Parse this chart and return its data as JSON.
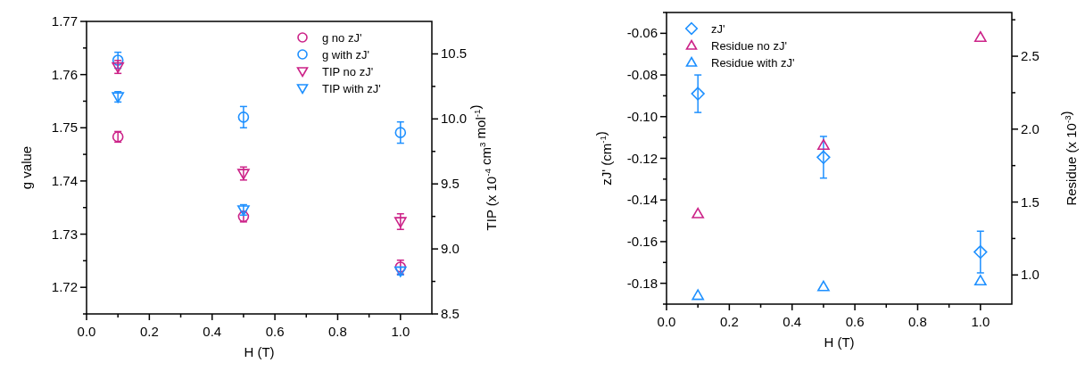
{
  "chart_data": [
    {
      "type": "scatter",
      "xlabel": "H (T)",
      "ylabel": "g value",
      "y2label": "TIP (x 10$^{-4}$ cm$^{3}$ mol$^{-1}$)",
      "legend": "top right",
      "x": [
        0.1,
        0.5,
        1.0
      ],
      "xlim": [
        0,
        1.1
      ],
      "xticks": [
        {
          "value": 0,
          "label": "0.0"
        },
        {
          "value": 0.1,
          "label": null
        },
        {
          "value": 0.2,
          "label": "0.2"
        },
        {
          "value": 0.3,
          "label": null
        },
        {
          "value": 0.4,
          "label": "0.4"
        },
        {
          "value": 0.5,
          "label": null
        },
        {
          "value": 0.6,
          "label": "0.6"
        },
        {
          "value": 0.7,
          "label": null
        },
        {
          "value": 0.8,
          "label": "0.8"
        },
        {
          "value": 0.9,
          "label": null
        },
        {
          "value": 1.0,
          "label": "1.0"
        }
      ],
      "ylim": [
        1.715,
        1.77
      ],
      "yticks": [
        {
          "value": 1.715,
          "label": null
        },
        1.72,
        {
          "value": 1.725,
          "label": null
        },
        1.73,
        {
          "value": 1.735,
          "label": null
        },
        1.74,
        {
          "value": 1.745,
          "label": null
        },
        1.75,
        {
          "value": 1.755,
          "label": null
        },
        1.76,
        {
          "value": 1.765,
          "label": null
        },
        1.77
      ],
      "y2lim": [
        8.5,
        10.75
      ],
      "y2ticks": [
        8.5,
        {
          "value": 8.75,
          "label": null
        },
        {
          "value": 9,
          "label": "9.0"
        },
        {
          "value": 9.25,
          "label": null
        },
        9.5,
        {
          "value": 9.75,
          "label": null
        },
        {
          "value": 10,
          "label": "10.0"
        },
        {
          "value": 10.25,
          "label": null
        },
        10.5
      ],
      "series": [
        {
          "name": "g no zJ'",
          "color": "#cc2288",
          "marker": "circle",
          "values": [
            1.7483,
            1.7333,
            1.7238
          ],
          "errors": [
            0.001,
            0.001,
            0.0013
          ]
        },
        {
          "name": "g with zJ'",
          "color": "#1e90ff",
          "marker": "circle",
          "values": [
            1.7627,
            1.752,
            1.7491
          ],
          "errors": [
            0.0015,
            0.002,
            0.002
          ]
        },
        {
          "name": "TIP no zJ'",
          "color": "#cc2288",
          "marker": "triangle-down",
          "axis": "y2",
          "values": [
            10.4,
            9.58,
            9.21
          ],
          "errors": [
            0.05,
            0.05,
            0.06
          ]
        },
        {
          "name": "TIP with zJ'",
          "color": "#1e90ff",
          "marker": "triangle-down",
          "axis": "y2",
          "values": [
            10.17,
            9.3,
            8.83
          ],
          "errors": [
            0.04,
            0.04,
            0.03
          ]
        }
      ]
    },
    {
      "type": "scatter",
      "xlabel": "H (T)",
      "ylabel": "zJ' (cm$^{-1}$)",
      "y2label": "Residue (x 10$^{-3}$)",
      "legend": "top left",
      "x": [
        0.1,
        0.5,
        1.0
      ],
      "xlim": [
        0,
        1.1
      ],
      "xticks": [
        {
          "value": 0,
          "label": "0.0"
        },
        {
          "value": 0.1,
          "label": null
        },
        {
          "value": 0.2,
          "label": "0.2"
        },
        {
          "value": 0.3,
          "label": null
        },
        {
          "value": 0.4,
          "label": "0.4"
        },
        {
          "value": 0.5,
          "label": null
        },
        {
          "value": 0.6,
          "label": "0.6"
        },
        {
          "value": 0.7,
          "label": null
        },
        {
          "value": 0.8,
          "label": "0.8"
        },
        {
          "value": 0.9,
          "label": null
        },
        {
          "value": 1.0,
          "label": "1.0"
        }
      ],
      "ylim": [
        -0.19,
        -0.05
      ],
      "yticks": [
        {
          "value": -0.19,
          "label": null
        },
        -0.18,
        {
          "value": -0.17,
          "label": null
        },
        -0.16,
        {
          "value": -0.15,
          "label": null
        },
        -0.14,
        {
          "value": -0.13,
          "label": null
        },
        -0.12,
        {
          "value": -0.11,
          "label": null
        },
        {
          "value": -0.1,
          "label": "-0.10"
        },
        {
          "value": -0.09,
          "label": null
        },
        -0.08,
        {
          "value": -0.07,
          "label": null
        },
        -0.06,
        {
          "value": -0.05,
          "label": null
        }
      ],
      "y2lim": [
        0.8,
        2.8
      ],
      "y2ticks": [
        {
          "value": 1,
          "label": "1.0"
        },
        {
          "value": 1.25,
          "label": null
        },
        1.5,
        {
          "value": 1.75,
          "label": null
        },
        {
          "value": 2,
          "label": "2.0"
        },
        {
          "value": 2.25,
          "label": null
        },
        2.5,
        {
          "value": 2.75,
          "label": null
        }
      ],
      "series": [
        {
          "name": "zJ'",
          "color": "#1e90ff",
          "marker": "diamond",
          "values": [
            -0.089,
            -0.1195,
            -0.165
          ],
          "errors": [
            0.009,
            0.01,
            0.01
          ]
        },
        {
          "name": "Residue no zJ'",
          "color": "#cc2288",
          "marker": "triangle",
          "axis": "y2",
          "values": [
            1.42,
            1.89,
            2.63
          ]
        },
        {
          "name": "Residue with zJ'",
          "color": "#1e90ff",
          "marker": "triangle",
          "axis": "y2",
          "values": [
            0.86,
            0.92,
            0.96
          ]
        }
      ]
    }
  ]
}
